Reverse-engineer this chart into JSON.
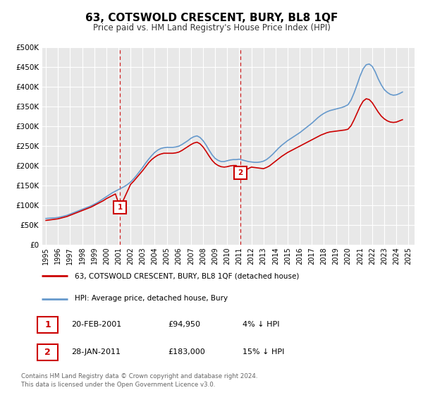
{
  "title": "63, COTSWOLD CRESCENT, BURY, BL8 1QF",
  "subtitle": "Price paid vs. HM Land Registry's House Price Index (HPI)",
  "legend_line1": "63, COTSWOLD CRESCENT, BURY, BL8 1QF (detached house)",
  "legend_line2": "HPI: Average price, detached house, Bury",
  "annotation1_label": "1",
  "annotation1_date": "20-FEB-2001",
  "annotation1_price": "£94,950",
  "annotation1_hpi": "4% ↓ HPI",
  "annotation1_year": 2001.13,
  "annotation1_value": 94950,
  "annotation2_label": "2",
  "annotation2_date": "28-JAN-2011",
  "annotation2_price": "£183,000",
  "annotation2_hpi": "15% ↓ HPI",
  "annotation2_year": 2011.08,
  "annotation2_value": 183000,
  "footer": "Contains HM Land Registry data © Crown copyright and database right 2024.\nThis data is licensed under the Open Government Licence v3.0.",
  "line_color_price": "#cc0000",
  "line_color_hpi": "#6699cc",
  "ylim": [
    0,
    500000
  ],
  "yticks": [
    0,
    50000,
    100000,
    150000,
    200000,
    250000,
    300000,
    350000,
    400000,
    450000,
    500000
  ],
  "plot_bg_color": "#e8e8e8",
  "hpi_years": [
    1995.0,
    1995.25,
    1995.5,
    1995.75,
    1996.0,
    1996.25,
    1996.5,
    1996.75,
    1997.0,
    1997.25,
    1997.5,
    1997.75,
    1998.0,
    1998.25,
    1998.5,
    1998.75,
    1999.0,
    1999.25,
    1999.5,
    1999.75,
    2000.0,
    2000.25,
    2000.5,
    2000.75,
    2001.0,
    2001.25,
    2001.5,
    2001.75,
    2002.0,
    2002.25,
    2002.5,
    2002.75,
    2003.0,
    2003.25,
    2003.5,
    2003.75,
    2004.0,
    2004.25,
    2004.5,
    2004.75,
    2005.0,
    2005.25,
    2005.5,
    2005.75,
    2006.0,
    2006.25,
    2006.5,
    2006.75,
    2007.0,
    2007.25,
    2007.5,
    2007.75,
    2008.0,
    2008.25,
    2008.5,
    2008.75,
    2009.0,
    2009.25,
    2009.5,
    2009.75,
    2010.0,
    2010.25,
    2010.5,
    2010.75,
    2011.0,
    2011.25,
    2011.5,
    2011.75,
    2012.0,
    2012.25,
    2012.5,
    2012.75,
    2013.0,
    2013.25,
    2013.5,
    2013.75,
    2014.0,
    2014.25,
    2014.5,
    2014.75,
    2015.0,
    2015.25,
    2015.5,
    2015.75,
    2016.0,
    2016.25,
    2016.5,
    2016.75,
    2017.0,
    2017.25,
    2017.5,
    2017.75,
    2018.0,
    2018.25,
    2018.5,
    2018.75,
    2019.0,
    2019.25,
    2019.5,
    2019.75,
    2020.0,
    2020.25,
    2020.5,
    2020.75,
    2021.0,
    2021.25,
    2021.5,
    2021.75,
    2022.0,
    2022.25,
    2022.5,
    2022.75,
    2023.0,
    2023.25,
    2023.5,
    2023.75,
    2024.0,
    2024.25,
    2024.5
  ],
  "hpi_values": [
    67000,
    67500,
    68000,
    68500,
    69500,
    71000,
    73000,
    75000,
    78000,
    81000,
    84000,
    87000,
    90000,
    93000,
    96000,
    99000,
    103000,
    107000,
    112000,
    117000,
    122000,
    127000,
    132000,
    136000,
    140000,
    144000,
    148000,
    153000,
    159000,
    167000,
    176000,
    186000,
    196000,
    207000,
    217000,
    226000,
    234000,
    240000,
    244000,
    246000,
    247000,
    247000,
    247000,
    248000,
    250000,
    254000,
    259000,
    264000,
    270000,
    274000,
    276000,
    272000,
    264000,
    253000,
    240000,
    228000,
    219000,
    214000,
    211000,
    211000,
    213000,
    215000,
    216000,
    216000,
    217000,
    215000,
    213000,
    211000,
    210000,
    209000,
    209000,
    210000,
    212000,
    216000,
    222000,
    229000,
    237000,
    245000,
    252000,
    258000,
    264000,
    269000,
    274000,
    279000,
    284000,
    290000,
    296000,
    302000,
    308000,
    315000,
    322000,
    328000,
    333000,
    337000,
    340000,
    342000,
    344000,
    346000,
    348000,
    351000,
    355000,
    367000,
    385000,
    406000,
    428000,
    446000,
    456000,
    458000,
    452000,
    438000,
    420000,
    405000,
    393000,
    386000,
    381000,
    379000,
    380000,
    383000,
    387000
  ],
  "price_years": [
    1995.0,
    1995.25,
    1995.5,
    1995.75,
    1996.0,
    1996.25,
    1996.5,
    1996.75,
    1997.0,
    1997.25,
    1997.5,
    1997.75,
    1998.0,
    1998.25,
    1998.5,
    1998.75,
    1999.0,
    1999.25,
    1999.5,
    1999.75,
    2000.0,
    2000.25,
    2000.5,
    2000.75,
    2001.13,
    2002.0,
    2002.25,
    2002.5,
    2002.75,
    2003.0,
    2003.25,
    2003.5,
    2003.75,
    2004.0,
    2004.25,
    2004.5,
    2004.75,
    2005.0,
    2005.25,
    2005.5,
    2005.75,
    2006.0,
    2006.25,
    2006.5,
    2006.75,
    2007.0,
    2007.25,
    2007.5,
    2007.75,
    2008.0,
    2008.25,
    2008.5,
    2008.75,
    2009.0,
    2009.25,
    2009.5,
    2009.75,
    2010.0,
    2010.25,
    2010.5,
    2010.75,
    2011.08,
    2012.0,
    2012.25,
    2012.5,
    2012.75,
    2013.0,
    2013.25,
    2013.5,
    2013.75,
    2014.0,
    2014.25,
    2014.5,
    2014.75,
    2015.0,
    2015.25,
    2015.5,
    2015.75,
    2016.0,
    2016.25,
    2016.5,
    2016.75,
    2017.0,
    2017.25,
    2017.5,
    2017.75,
    2018.0,
    2018.25,
    2018.5,
    2018.75,
    2019.0,
    2019.25,
    2019.5,
    2019.75,
    2020.0,
    2020.25,
    2020.5,
    2020.75,
    2021.0,
    2021.25,
    2021.5,
    2021.75,
    2022.0,
    2022.25,
    2022.5,
    2022.75,
    2023.0,
    2023.25,
    2023.5,
    2023.75,
    2024.0,
    2024.25,
    2024.5
  ],
  "price_values": [
    62000,
    63000,
    64000,
    65000,
    66000,
    68000,
    70000,
    72000,
    75000,
    78000,
    81000,
    84000,
    87000,
    90000,
    93000,
    96000,
    100000,
    104000,
    108000,
    112000,
    117000,
    121000,
    125000,
    129000,
    94950,
    153000,
    161000,
    170000,
    179000,
    188000,
    198000,
    208000,
    216000,
    222000,
    227000,
    230000,
    232000,
    232000,
    232000,
    232000,
    233000,
    235000,
    239000,
    244000,
    249000,
    254000,
    258000,
    260000,
    256000,
    248000,
    237000,
    225000,
    214000,
    206000,
    201000,
    198000,
    197000,
    198000,
    200000,
    201000,
    201000,
    183000,
    197000,
    196000,
    195000,
    194000,
    193000,
    196000,
    200000,
    206000,
    212000,
    218000,
    224000,
    229000,
    234000,
    238000,
    242000,
    246000,
    250000,
    254000,
    258000,
    262000,
    266000,
    270000,
    274000,
    278000,
    281000,
    284000,
    286000,
    287000,
    288000,
    289000,
    290000,
    291000,
    293000,
    302000,
    317000,
    334000,
    351000,
    364000,
    370000,
    368000,
    360000,
    348000,
    336000,
    326000,
    319000,
    314000,
    311000,
    310000,
    311000,
    314000,
    317000
  ],
  "vline1_x": 2001.13,
  "vline2_x": 2011.08,
  "xtick_years": [
    1995,
    1996,
    1997,
    1998,
    1999,
    2000,
    2001,
    2002,
    2003,
    2004,
    2005,
    2006,
    2007,
    2008,
    2009,
    2010,
    2011,
    2012,
    2013,
    2014,
    2015,
    2016,
    2017,
    2018,
    2019,
    2020,
    2021,
    2022,
    2023,
    2024,
    2025
  ]
}
